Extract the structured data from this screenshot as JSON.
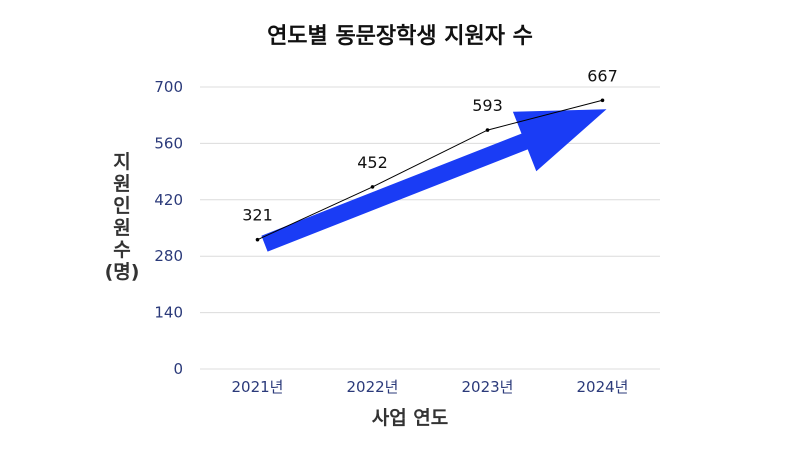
{
  "chart_data": {
    "type": "line",
    "title": "연도별 동문장학생 지원자 수",
    "xlabel": "사업 연도",
    "ylabel": "지원인원수(명)",
    "categories": [
      "2021년",
      "2022년",
      "2023년",
      "2024년"
    ],
    "series": [
      {
        "values": [
          321,
          452,
          593,
          667
        ]
      }
    ],
    "ylim": [
      0,
      700
    ],
    "yticks": [
      0,
      140,
      280,
      420,
      560,
      700
    ],
    "grid": true,
    "arrow_color": "#1a3cf5",
    "line_color": "#000000"
  }
}
